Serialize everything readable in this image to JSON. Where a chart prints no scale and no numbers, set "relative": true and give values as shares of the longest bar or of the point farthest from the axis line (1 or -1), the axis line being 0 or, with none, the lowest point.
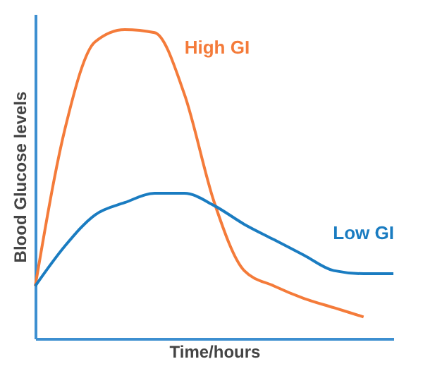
{
  "chart_data": {
    "type": "line",
    "relative": true,
    "xlabel": "Time/hours",
    "ylabel": "Blood Glucose levels",
    "tick_labels": false,
    "grid": false,
    "marker": "none",
    "line_style": "solid",
    "categories": [
      null,
      null,
      null,
      null,
      null,
      null,
      null,
      null,
      null,
      null,
      null,
      null,
      null
    ],
    "series": [
      {
        "name": "High GI",
        "color": "#f47b3a",
        "values": [
          0.17,
          0.68,
          0.96,
          1,
          0.99,
          0.79,
          0.44,
          0.22,
          0.17,
          0.13,
          0.1,
          0.07,
          null
        ]
      },
      {
        "name": "Low GI",
        "color": "#1a7cc1",
        "values": [
          0.17,
          0.3,
          0.4,
          0.44,
          0.47,
          0.47,
          0.43,
          0.37,
          0.32,
          0.27,
          0.22,
          0.21,
          0.21
        ]
      }
    ]
  }
}
